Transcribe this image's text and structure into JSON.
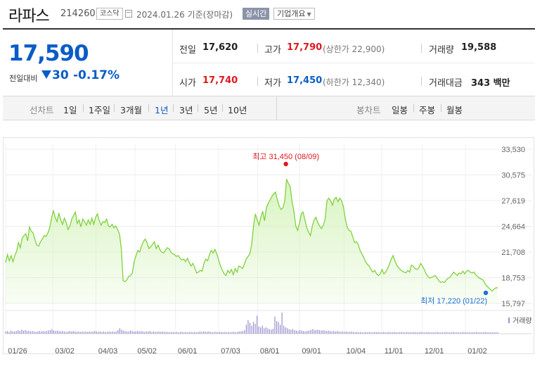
{
  "header": {
    "name": "라파스",
    "code": "214260",
    "market_badge": "코스닥",
    "date": "2024.01.26",
    "basis": "기준(장마감)",
    "realtime_badge": "실시간",
    "company_button": "기업개요",
    "company_button_caret": "▼"
  },
  "quote": {
    "price": "17,590",
    "change_label": "전일대비",
    "change_value": "30",
    "change_pct": "-0.17%",
    "prev_close_label": "전일",
    "prev_close": "17,620",
    "high_label": "고가",
    "high": "17,790",
    "upper_limit": "(상한가 22,900)",
    "volume_label": "거래량",
    "volume": "19,588",
    "open_label": "시가",
    "open": "17,740",
    "low_label": "저가",
    "low": "17,450",
    "lower_limit": "(하한가 12,340)",
    "amount_label": "거래대금",
    "amount": "343",
    "amount_unit": "백만",
    "colors": {
      "down": "#0a5cc7",
      "up": "#e0181f"
    }
  },
  "tabs": {
    "line_label": "선차트",
    "line_periods": [
      "1일",
      "1주일",
      "3개월",
      "1년",
      "3년",
      "5년",
      "10년"
    ],
    "active_period": "1년",
    "candle_label": "봉차트",
    "candle_periods": [
      "일봉",
      "주봉",
      "월봉"
    ]
  },
  "chart_data": {
    "type": "area",
    "title": "",
    "xlabel": "",
    "ylabel": "",
    "ylim": [
      15797,
      33530
    ],
    "yticks": [
      "33,530",
      "30,575",
      "27,619",
      "24,664",
      "21,708",
      "18,753",
      "15,797"
    ],
    "yticks_values": [
      33530,
      30575,
      27619,
      24664,
      21708,
      18753,
      15797
    ],
    "xticks": [
      "01/26",
      "03/02",
      "04/03",
      "05/02",
      "06/01",
      "07/03",
      "08/01",
      "09/01",
      "10/04",
      "11/01",
      "12/01",
      "01/02"
    ],
    "grid": true,
    "line_color": "#7ed23c",
    "fill_color": "#d6f3bd",
    "max_annotation": {
      "label": "최고",
      "value_text": "31,450",
      "date_text": "(08/09)",
      "color": "#e0181f",
      "value": 31450
    },
    "min_annotation": {
      "label": "최저",
      "value_text": "17,220",
      "date_text": "(01/22)",
      "color": "#1d6fd6",
      "value": 17220
    },
    "volume_legend": "거래량",
    "volume_color": "#9b8fd1",
    "series": [
      {
        "values": [
          20500,
          21400,
          20700,
          21300,
          20600,
          21300,
          21800,
          22800,
          22200,
          23300,
          23600,
          23800,
          23000,
          24600,
          24100,
          23900,
          23100,
          22500,
          22400,
          22900,
          23200,
          23600,
          23500,
          23900,
          24500,
          25600,
          26500,
          25700,
          25200,
          26200,
          25400,
          24900,
          25600,
          25100,
          24300,
          24700,
          25500,
          25900,
          26300,
          25000,
          25400,
          24600,
          25500,
          25200,
          24800,
          25400,
          24900,
          25600,
          24900,
          25700,
          26100,
          25300,
          24800,
          25200,
          25100,
          25500,
          24700,
          24600,
          24900,
          24500,
          24700,
          24300,
          23800,
          22100,
          18400,
          18300,
          18500,
          18900,
          19000,
          19300,
          20600,
          21300,
          21900,
          21700,
          22400,
          22900,
          23200,
          22800,
          22100,
          22300,
          22600,
          22900,
          22100,
          22500,
          22000,
          21700,
          21600,
          21900,
          22200,
          22100,
          21700,
          21500,
          21400,
          21200,
          21300,
          21000,
          20800,
          20900,
          20600,
          21000,
          20500,
          20100,
          20400,
          19900,
          19300,
          19400,
          19600,
          19500,
          20400,
          20900,
          20700,
          21400,
          21900,
          21600,
          22000,
          21500,
          20800,
          20100,
          19600,
          19200,
          19000,
          19600,
          19300,
          19700,
          19100,
          19800,
          19400,
          20100,
          20000,
          19800,
          20300,
          20900,
          21200,
          21500,
          22600,
          24700,
          26100,
          25400,
          24800,
          25700,
          26400,
          25300,
          26800,
          27300,
          27700,
          28100,
          28400,
          28600,
          27700,
          27000,
          26600,
          26800,
          27600,
          30100,
          29600,
          29200,
          27500,
          26400,
          24700,
          24200,
          25000,
          26100,
          26300,
          25400,
          24500,
          24000,
          23600,
          24700,
          25400,
          25700,
          25100,
          24700,
          24400,
          24800,
          25500,
          27600,
          27900,
          27600,
          27100,
          27800,
          28000,
          27500,
          27900,
          27600,
          26900,
          25500,
          24600,
          24200,
          24100,
          23500,
          22800,
          22900,
          22600,
          21900,
          21500,
          21100,
          20600,
          20300,
          20100,
          19700,
          19400,
          19600,
          19200,
          19000,
          19200,
          19700,
          19200,
          19400,
          19800,
          20300,
          20900,
          21300,
          20700,
          20200,
          19900,
          19700,
          19500,
          19400,
          19300,
          19600,
          19400,
          20200,
          20100,
          19800,
          19700,
          19900,
          20400,
          20100,
          19700,
          19200,
          18900,
          18700,
          18800,
          18900,
          19000,
          18700,
          18400,
          18200,
          18300,
          18200,
          18500,
          18700,
          18800,
          19100,
          19400,
          19200,
          19000,
          19300,
          19200,
          19500,
          19200,
          19500,
          19600,
          19400,
          19300,
          19400,
          19100,
          18900,
          18700,
          18600,
          18500,
          18100,
          17800,
          17600,
          17400,
          17220,
          17450,
          17600,
          17590
        ]
      }
    ],
    "volume_values": [
      5,
      6,
      4,
      7,
      5,
      5,
      6,
      8,
      6,
      9,
      7,
      8,
      6,
      7,
      5,
      6,
      5,
      4,
      5,
      6,
      5,
      6,
      5,
      6,
      7,
      8,
      10,
      7,
      6,
      7,
      6,
      5,
      6,
      5,
      4,
      5,
      6,
      5,
      6,
      5,
      4,
      5,
      4,
      5,
      4,
      5,
      4,
      5,
      4,
      5,
      6,
      5,
      4,
      5,
      4,
      5,
      4,
      4,
      5,
      4,
      5,
      4,
      5,
      8,
      12,
      9,
      7,
      6,
      5,
      5,
      7,
      6,
      5,
      5,
      6,
      5,
      6,
      5,
      4,
      5,
      5,
      6,
      4,
      5,
      4,
      4,
      5,
      4,
      5,
      4,
      4,
      4,
      3,
      4,
      4,
      3,
      4,
      3,
      4,
      4,
      3,
      4,
      3,
      4,
      4,
      3,
      4,
      3,
      4,
      5,
      4,
      5,
      5,
      4,
      5,
      4,
      3,
      4,
      4,
      3,
      4,
      4,
      3,
      4,
      3,
      4,
      3,
      4,
      4,
      3,
      4,
      5,
      5,
      6,
      8,
      20,
      30,
      24,
      18,
      26,
      22,
      40,
      16,
      14,
      18,
      12,
      14,
      12,
      10,
      9,
      11,
      38,
      28,
      26,
      20,
      47,
      18,
      14,
      12,
      10,
      9,
      10,
      8,
      7,
      6,
      8,
      7,
      6,
      5,
      6,
      7,
      8,
      10,
      9,
      8,
      9,
      8,
      7,
      8,
      7,
      6,
      7,
      6,
      5,
      6,
      5,
      6,
      5,
      4,
      5,
      4,
      5,
      4,
      4,
      5,
      4,
      3,
      4,
      3,
      4,
      3,
      3,
      4,
      3,
      4,
      3,
      3,
      4,
      3,
      4,
      3,
      3,
      4,
      3,
      3,
      4,
      3,
      3,
      4,
      3,
      3,
      3,
      4,
      3,
      3,
      4,
      3,
      3,
      3,
      4,
      3,
      3,
      3,
      4,
      3,
      3,
      3,
      4,
      3,
      3,
      3,
      3,
      4,
      3,
      3,
      3,
      3,
      4,
      3,
      3,
      3,
      4,
      3,
      3,
      3,
      3,
      3,
      4,
      3,
      3,
      3,
      3,
      3,
      3,
      4,
      3,
      3,
      3,
      3,
      4,
      3,
      3,
      3,
      3,
      3,
      3,
      3
    ]
  }
}
